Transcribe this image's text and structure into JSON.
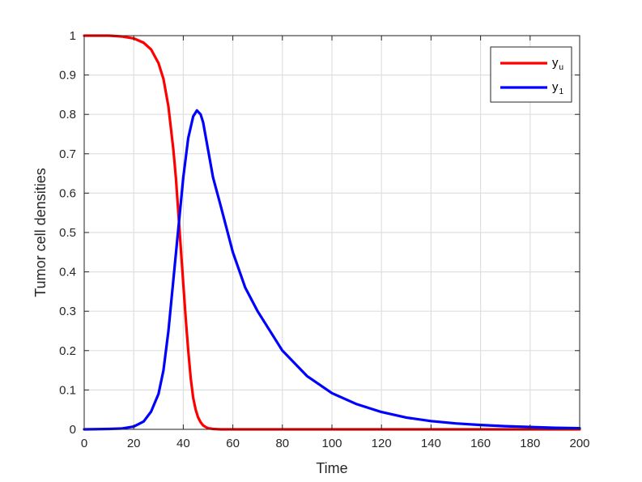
{
  "chart_data": {
    "type": "line",
    "title": "",
    "xlabel": "Time",
    "ylabel": "Tumor cell densities",
    "xlim": [
      0,
      200
    ],
    "ylim": [
      0,
      1
    ],
    "xticks": [
      0,
      20,
      40,
      60,
      80,
      100,
      120,
      140,
      160,
      180,
      200
    ],
    "yticks": [
      0,
      0.1,
      0.2,
      0.3,
      0.4,
      0.5,
      0.6,
      0.7,
      0.8,
      0.9,
      1
    ],
    "xtick_labels": [
      "0",
      "20",
      "40",
      "60",
      "80",
      "100",
      "120",
      "140",
      "160",
      "180",
      "200"
    ],
    "ytick_labels": [
      "0",
      "0.1",
      "0.2",
      "0.3",
      "0.4",
      "0.5",
      "0.6",
      "0.7",
      "0.8",
      "0.9",
      "1"
    ],
    "grid": true,
    "legend_position": "top-right",
    "series": [
      {
        "name": "y_u",
        "legend_main": "y",
        "legend_sub": "u",
        "color": "#ff0000",
        "x": [
          0,
          10,
          15,
          20,
          24,
          27,
          30,
          32,
          34,
          36,
          37,
          38,
          39,
          40,
          41,
          42,
          43,
          44,
          45,
          46,
          47,
          48,
          49,
          50,
          52,
          55,
          60,
          80,
          100,
          120,
          140,
          160,
          180,
          200
        ],
        "y": [
          1.0,
          1.0,
          0.998,
          0.993,
          0.982,
          0.965,
          0.93,
          0.89,
          0.82,
          0.71,
          0.64,
          0.55,
          0.46,
          0.37,
          0.28,
          0.2,
          0.13,
          0.08,
          0.05,
          0.03,
          0.018,
          0.01,
          0.006,
          0.003,
          0.001,
          0.0,
          0.0,
          0.0,
          0.0,
          0.0,
          0.0,
          0.0,
          0.0,
          0.0
        ]
      },
      {
        "name": "y_1",
        "legend_main": "y",
        "legend_sub": "1",
        "color": "#0000ff",
        "x": [
          0,
          10,
          15,
          20,
          24,
          27,
          30,
          32,
          34,
          36,
          38,
          40,
          42,
          44,
          45.5,
          47,
          48,
          50,
          52,
          55,
          60,
          65,
          70,
          80,
          90,
          100,
          110,
          120,
          130,
          140,
          150,
          160,
          170,
          180,
          190,
          200
        ],
        "y": [
          0.0,
          0.001,
          0.002,
          0.007,
          0.02,
          0.045,
          0.09,
          0.15,
          0.25,
          0.38,
          0.51,
          0.64,
          0.74,
          0.795,
          0.81,
          0.8,
          0.78,
          0.71,
          0.64,
          0.57,
          0.45,
          0.36,
          0.3,
          0.2,
          0.135,
          0.092,
          0.064,
          0.044,
          0.03,
          0.021,
          0.015,
          0.011,
          0.008,
          0.006,
          0.004,
          0.003
        ]
      }
    ]
  }
}
